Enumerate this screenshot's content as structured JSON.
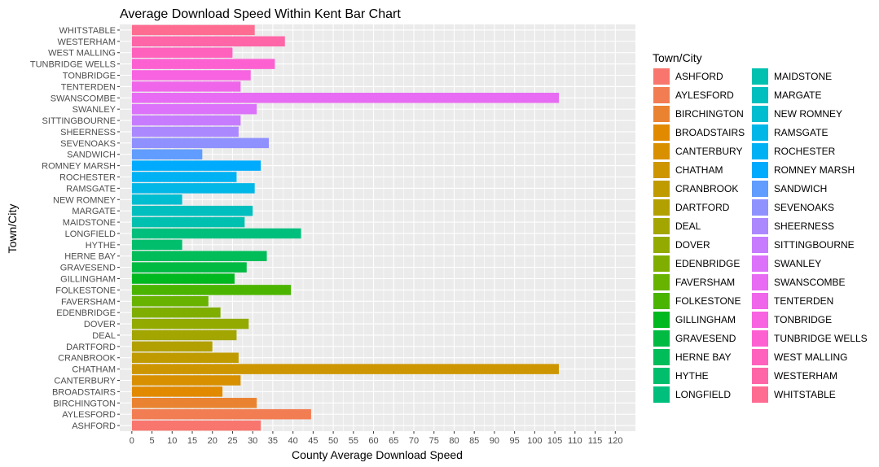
{
  "chart_data": {
    "type": "bar",
    "orientation": "horizontal",
    "title": "Average Download Speed Within Kent Bar Chart",
    "xlabel": "County Average Download Speed",
    "ylabel": "Town/City",
    "xlim": [
      -3,
      125
    ],
    "x_ticks": [
      0,
      5,
      10,
      15,
      20,
      25,
      30,
      35,
      40,
      45,
      50,
      55,
      60,
      65,
      70,
      75,
      80,
      85,
      90,
      95,
      100,
      105,
      110,
      115,
      120
    ],
    "grid": true,
    "legend": {
      "title": "Town/City",
      "placement": "right",
      "columns": 2
    },
    "categories": [
      "ASHFORD",
      "AYLESFORD",
      "BIRCHINGTON",
      "BROADSTAIRS",
      "CANTERBURY",
      "CHATHAM",
      "CRANBROOK",
      "DARTFORD",
      "DEAL",
      "DOVER",
      "EDENBRIDGE",
      "FAVERSHAM",
      "FOLKESTONE",
      "GILLINGHAM",
      "GRAVESEND",
      "HERNE BAY",
      "HYTHE",
      "LONGFIELD",
      "MAIDSTONE",
      "MARGATE",
      "NEW ROMNEY",
      "RAMSGATE",
      "ROCHESTER",
      "ROMNEY MARSH",
      "SANDWICH",
      "SEVENOAKS",
      "SHEERNESS",
      "SITTINGBOURNE",
      "SWANLEY",
      "SWANSCOMBE",
      "TENTERDEN",
      "TONBRIDGE",
      "TUNBRIDGE WELLS",
      "WEST MALLING",
      "WESTERHAM",
      "WHITSTABLE"
    ],
    "values": [
      32,
      44.5,
      31,
      22.5,
      27,
      106,
      26.5,
      20,
      26,
      29,
      22,
      19,
      39.5,
      25.5,
      28.5,
      33.5,
      12.5,
      42,
      28,
      30,
      12.5,
      30.5,
      26,
      32,
      17.5,
      34,
      26.5,
      27,
      31,
      106,
      27,
      29.5,
      35.5,
      25,
      38,
      30.5
    ],
    "colors": [
      "#F8766D",
      "#F27D52",
      "#EA8331",
      "#E18A00",
      "#D89000",
      "#CD9600",
      "#C09B00",
      "#B2A000",
      "#A3A500",
      "#93AA00",
      "#7FAE00",
      "#68B200",
      "#4BB400",
      "#00B81F",
      "#00BA42",
      "#00BC59",
      "#00BE6C",
      "#00BF7D",
      "#00C0AF",
      "#00BFBE",
      "#00BDD0",
      "#00B7E8",
      "#00B2F3",
      "#00ABFD",
      "#619CFF",
      "#8F91FF",
      "#AC88FF",
      "#C77CFF",
      "#DC71FA",
      "#E76BF3",
      "#F066EA",
      "#F763E0",
      "#FD61D1",
      "#FF62BC",
      "#FF66A8",
      "#FF6C91"
    ]
  }
}
